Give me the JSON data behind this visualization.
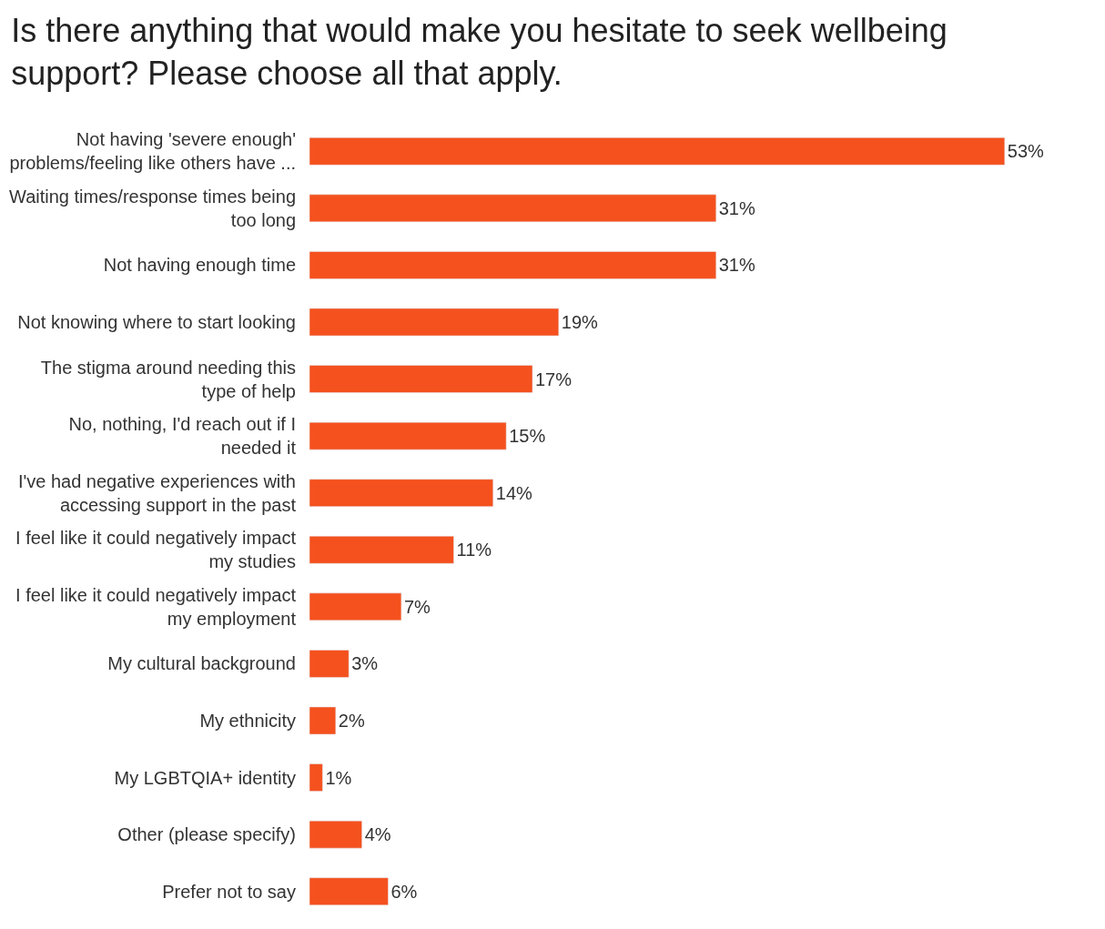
{
  "chart_data": {
    "type": "bar",
    "orientation": "horizontal",
    "title": "Is there anything that would make you hesitate to seek wellbeing\nsupport? Please choose all that apply.",
    "categories": [
      "Not having 'severe enough'\nproblems/feeling like others have ...",
      "Waiting times/response times being\ntoo long",
      "Not having enough time",
      "Not knowing where to start looking",
      "The stigma around needing this\ntype of help",
      "No, nothing, I'd reach out if I\nneeded it",
      "I've had negative experiences with\naccessing support in the past",
      "I feel like it could negatively impact\nmy studies",
      "I feel like it could negatively impact\nmy employment",
      "My cultural background",
      "My ethnicity",
      "My LGBTQIA+ identity",
      "Other (please specify)",
      "Prefer not to say"
    ],
    "values": [
      53,
      31,
      31,
      19,
      17,
      15,
      14,
      11,
      7,
      3,
      2,
      1,
      4,
      6
    ],
    "value_labels": [
      "53%",
      "31%",
      "31%",
      "19%",
      "17%",
      "15%",
      "14%",
      "11%",
      "7%",
      "3%",
      "2%",
      "1%",
      "4%",
      "6%"
    ],
    "color": "#f4511e",
    "legend": false
  }
}
